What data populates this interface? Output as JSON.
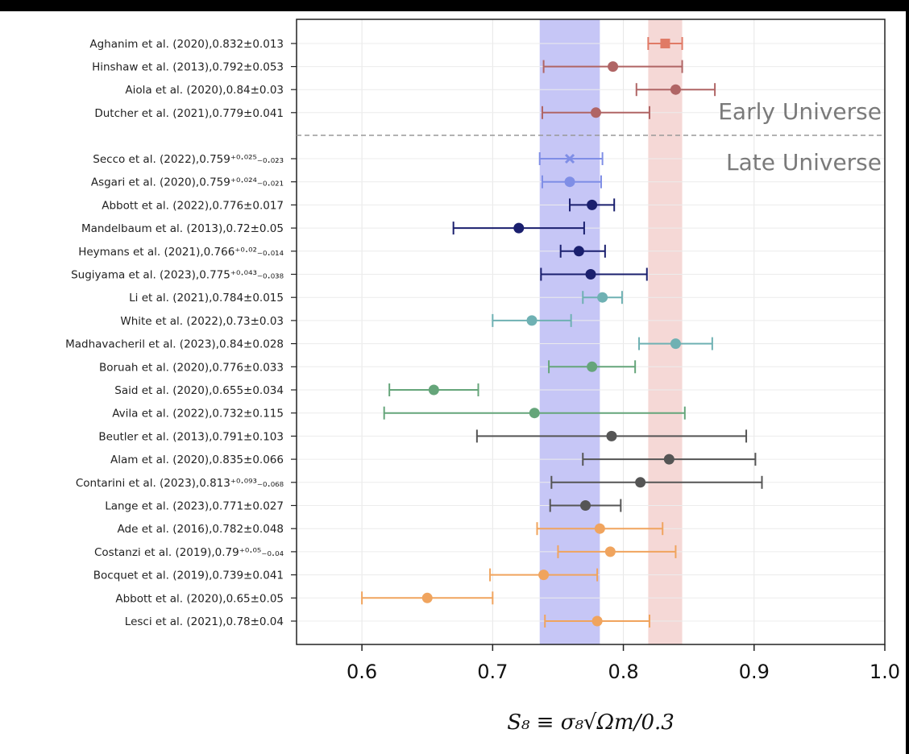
{
  "chart_data": {
    "type": "scatter",
    "subtype": "forest-plot-errorbars",
    "xlabel": "S₈ ≡ σ₈√Ωm/0.3",
    "xlim": [
      0.55,
      1.0
    ],
    "xticks": [
      "0.6",
      "0.7",
      "0.8",
      "0.9",
      "1.0"
    ],
    "grid": true,
    "regions": {
      "early": "Early Universe",
      "late": "Late Universe"
    },
    "bands": [
      {
        "name": "late",
        "low": 0.736,
        "high": 0.782,
        "color": "#c6c6f6"
      },
      {
        "name": "early",
        "low": 0.819,
        "high": 0.845,
        "color": "#f5d8d6"
      }
    ],
    "points": [
      {
        "label": "Aghanim et al. (2020),0.832±0.013",
        "value": 0.832,
        "low": 0.819,
        "high": 0.845,
        "color": "#e07a66",
        "marker": "square"
      },
      {
        "label": "Hinshaw et al. (2013),0.792±0.053",
        "value": 0.792,
        "low": 0.739,
        "high": 0.845,
        "color": "#b06565",
        "marker": "circle"
      },
      {
        "label": "Aiola et al. (2020),0.84±0.03",
        "value": 0.84,
        "low": 0.81,
        "high": 0.87,
        "color": "#b06565",
        "marker": "circle"
      },
      {
        "label": "Dutcher et al. (2021),0.779±0.041",
        "value": 0.779,
        "low": 0.738,
        "high": 0.82,
        "color": "#b06565",
        "marker": "circle"
      },
      {
        "label": "Secco et al. (2022),0.759⁺⁰·⁰²⁵₋₀.₀₂₃",
        "value": 0.759,
        "low": 0.736,
        "high": 0.784,
        "color": "#7f8ee6",
        "marker": "x"
      },
      {
        "label": "Asgari et al. (2020),0.759⁺⁰·⁰²⁴₋₀.₀₂₁",
        "value": 0.759,
        "low": 0.738,
        "high": 0.783,
        "color": "#7f8ee6",
        "marker": "circle"
      },
      {
        "label": "Abbott et al. (2022),0.776±0.017",
        "value": 0.776,
        "low": 0.759,
        "high": 0.793,
        "color": "#1a1f6e",
        "marker": "circle"
      },
      {
        "label": "Mandelbaum et al. (2013),0.72±0.05",
        "value": 0.72,
        "low": 0.67,
        "high": 0.77,
        "color": "#1a1f6e",
        "marker": "circle"
      },
      {
        "label": "Heymans et al. (2021),0.766⁺⁰·⁰²₋₀.₀₁₄",
        "value": 0.766,
        "low": 0.752,
        "high": 0.786,
        "color": "#1a1f6e",
        "marker": "circle"
      },
      {
        "label": "Sugiyama et al. (2023),0.775⁺⁰·⁰⁴³₋₀.₀₃₈",
        "value": 0.775,
        "low": 0.737,
        "high": 0.818,
        "color": "#1a1f6e",
        "marker": "circle"
      },
      {
        "label": "Li et al. (2021),0.784±0.015",
        "value": 0.784,
        "low": 0.769,
        "high": 0.799,
        "color": "#6fb1b3",
        "marker": "circle"
      },
      {
        "label": "White et al. (2022),0.73±0.03",
        "value": 0.73,
        "low": 0.7,
        "high": 0.76,
        "color": "#6fb1b3",
        "marker": "circle"
      },
      {
        "label": "Madhavacheril et al. (2023),0.84±0.028",
        "value": 0.84,
        "low": 0.812,
        "high": 0.868,
        "color": "#6fb1b3",
        "marker": "circle"
      },
      {
        "label": "Boruah et al. (2020),0.776±0.033",
        "value": 0.776,
        "low": 0.743,
        "high": 0.809,
        "color": "#65a57a",
        "marker": "circle"
      },
      {
        "label": "Said et al. (2020),0.655±0.034",
        "value": 0.655,
        "low": 0.621,
        "high": 0.689,
        "color": "#65a57a",
        "marker": "circle"
      },
      {
        "label": "Avila et al. (2022),0.732±0.115",
        "value": 0.732,
        "low": 0.617,
        "high": 0.847,
        "color": "#65a57a",
        "marker": "circle"
      },
      {
        "label": "Beutler et al. (2013),0.791±0.103",
        "value": 0.791,
        "low": 0.688,
        "high": 0.894,
        "color": "#555555",
        "marker": "circle"
      },
      {
        "label": "Alam et al. (2020),0.835±0.066",
        "value": 0.835,
        "low": 0.769,
        "high": 0.901,
        "color": "#555555",
        "marker": "circle"
      },
      {
        "label": "Contarini et al. (2023),0.813⁺⁰·⁰⁹³₋₀.₀₆₈",
        "value": 0.813,
        "low": 0.745,
        "high": 0.906,
        "color": "#555555",
        "marker": "circle"
      },
      {
        "label": "Lange et al. (2023),0.771±0.027",
        "value": 0.771,
        "low": 0.744,
        "high": 0.798,
        "color": "#555555",
        "marker": "circle"
      },
      {
        "label": "Ade et al. (2016),0.782±0.048",
        "value": 0.782,
        "low": 0.734,
        "high": 0.83,
        "color": "#f0a45e",
        "marker": "circle"
      },
      {
        "label": "Costanzi et al. (2019),0.79⁺⁰·⁰⁵₋₀.₀₄",
        "value": 0.79,
        "low": 0.75,
        "high": 0.84,
        "color": "#f0a45e",
        "marker": "circle"
      },
      {
        "label": "Bocquet et al. (2019),0.739±0.041",
        "value": 0.739,
        "low": 0.698,
        "high": 0.78,
        "color": "#f0a45e",
        "marker": "circle"
      },
      {
        "label": "Abbott et al. (2020),0.65±0.05",
        "value": 0.65,
        "low": 0.6,
        "high": 0.7,
        "color": "#f0a45e",
        "marker": "circle"
      },
      {
        "label": "Lesci et al. (2021),0.78±0.04",
        "value": 0.78,
        "low": 0.74,
        "high": 0.82,
        "color": "#f0a45e",
        "marker": "circle"
      }
    ]
  }
}
